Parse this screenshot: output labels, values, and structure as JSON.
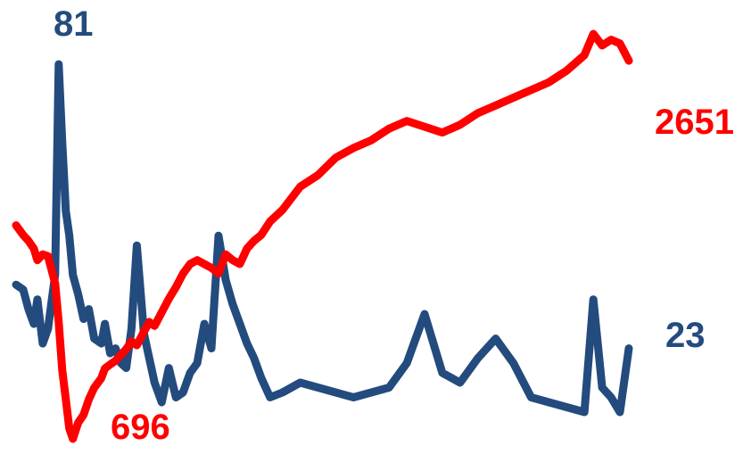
{
  "chart_data": {
    "type": "line",
    "title": "",
    "xlabel": "",
    "ylabel": "",
    "grid": false,
    "legend": "none",
    "x": [
      0,
      8,
      14,
      20,
      24,
      30,
      36,
      44,
      48,
      52,
      56,
      60,
      64,
      70,
      76,
      82,
      88,
      96,
      100,
      106,
      112,
      118,
      124,
      130,
      136,
      144,
      150,
      156,
      164,
      172,
      180,
      188,
      196,
      204,
      212,
      220,
      228,
      236,
      244,
      252,
      260,
      268,
      276,
      286,
      300,
      320,
      340,
      360,
      380,
      400,
      420,
      440,
      460,
      480,
      500,
      520,
      540,
      560,
      580,
      600,
      620,
      640,
      650,
      660,
      670,
      680,
      690
    ],
    "series": [
      {
        "values": [
          36,
          35,
          31,
          28,
          33,
          24,
          27,
          38,
          81,
          65,
          51,
          46,
          38,
          34,
          29,
          31,
          25,
          24,
          28,
          22,
          23,
          20,
          19,
          27,
          44,
          26,
          21,
          16,
          12,
          19,
          13,
          14,
          18,
          20,
          28,
          23,
          46,
          37,
          32,
          28,
          24,
          21,
          17,
          13,
          14,
          16,
          15,
          14,
          13,
          14,
          15,
          20,
          30,
          18,
          16,
          21,
          25,
          20,
          13,
          12,
          11,
          10,
          33,
          15,
          13,
          10,
          23
        ],
        "color": "#234b7e"
      },
      {
        "values": [
          1800,
          1750,
          1720,
          1680,
          1620,
          1650,
          1640,
          1500,
          1300,
          1050,
          900,
          750,
          696,
          780,
          820,
          900,
          960,
          1010,
          1060,
          1080,
          1100,
          1130,
          1160,
          1200,
          1180,
          1250,
          1300,
          1280,
          1350,
          1420,
          1480,
          1550,
          1600,
          1620,
          1600,
          1580,
          1550,
          1650,
          1620,
          1600,
          1680,
          1720,
          1750,
          1820,
          1880,
          2000,
          2060,
          2150,
          2200,
          2240,
          2300,
          2340,
          2310,
          2280,
          2320,
          2380,
          2420,
          2460,
          2500,
          2540,
          2600,
          2680,
          2790,
          2730,
          2760,
          2740,
          2651
        ],
        "color": "#ff0000"
      }
    ],
    "annotations": [
      {
        "text": "81",
        "series": 0,
        "kind": "max",
        "color": "#234b7e"
      },
      {
        "text": "23",
        "series": 0,
        "kind": "last",
        "color": "#234b7e"
      },
      {
        "text": "696",
        "series": 1,
        "kind": "min",
        "color": "#ff0000"
      },
      {
        "text": "2651",
        "series": 1,
        "kind": "last",
        "color": "#ff0000"
      }
    ]
  }
}
